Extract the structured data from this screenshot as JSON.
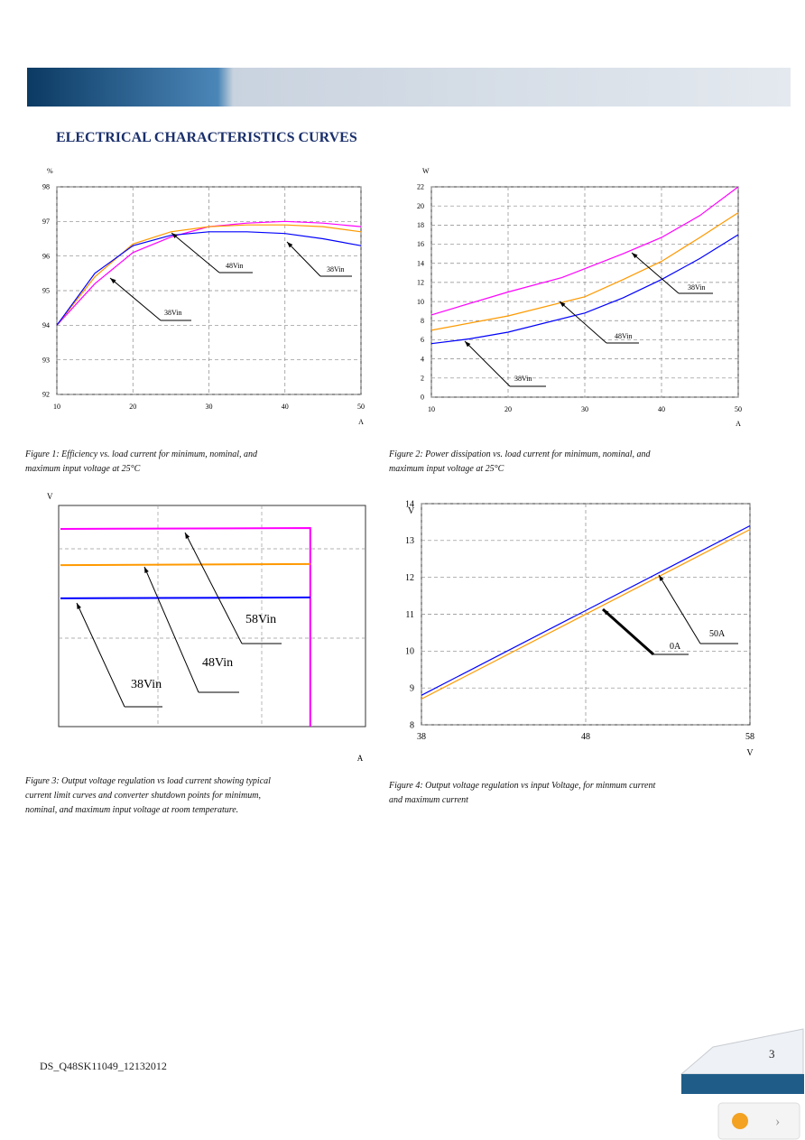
{
  "header": {
    "title": "ELECTRICAL CHARACTERISTICS CURVES"
  },
  "chart_data": [
    {
      "type": "line",
      "y_label": "%",
      "x_label": "A",
      "xlim": [
        10,
        50
      ],
      "ylim": [
        92,
        98
      ],
      "xticks": [
        10,
        20,
        30,
        40,
        50
      ],
      "yticks": [
        92,
        93,
        94,
        95,
        96,
        97,
        98
      ],
      "grid": true,
      "series": [
        {
          "color": "#ff00ff",
          "x": [
            10,
            15,
            20,
            25,
            30,
            35,
            40,
            45,
            50
          ],
          "values": [
            94.0,
            95.2,
            96.1,
            96.55,
            96.85,
            96.95,
            97.0,
            96.95,
            96.85
          ]
        },
        {
          "color": "#ff9900",
          "x": [
            10,
            15,
            20,
            25,
            30,
            35,
            40,
            45,
            50
          ],
          "values": [
            94.0,
            95.4,
            96.35,
            96.7,
            96.85,
            96.9,
            96.9,
            96.85,
            96.7
          ]
        },
        {
          "color": "#0000ff",
          "x": [
            10,
            15,
            20,
            25,
            30,
            35,
            40,
            45,
            50
          ],
          "values": [
            94.0,
            95.5,
            96.3,
            96.6,
            96.7,
            96.7,
            96.65,
            96.5,
            96.3
          ]
        }
      ],
      "annotations": [
        "48Vin",
        "38Vin",
        "38Vin"
      ]
    },
    {
      "type": "line",
      "y_label": "W",
      "x_label": "A",
      "xlim": [
        10,
        50
      ],
      "ylim": [
        0,
        22
      ],
      "xticks": [
        10,
        20,
        30,
        40,
        50
      ],
      "yticks": [
        0,
        2,
        4,
        6,
        8,
        10,
        12,
        14,
        16,
        18,
        20,
        22
      ],
      "grid": true,
      "series": [
        {
          "color": "#ff00ff",
          "x": [
            10,
            20,
            27,
            35,
            40,
            45,
            50
          ],
          "values": [
            8.6,
            11,
            12.5,
            15,
            16.7,
            19,
            22
          ]
        },
        {
          "color": "#ff9900",
          "x": [
            10,
            20,
            30,
            35,
            40,
            45,
            50
          ],
          "values": [
            7,
            8.5,
            10.5,
            12.3,
            14.2,
            16.7,
            19.3
          ]
        },
        {
          "color": "#0000ff",
          "x": [
            10,
            15,
            20,
            30,
            35,
            40,
            45,
            50
          ],
          "values": [
            5.6,
            6.1,
            6.8,
            8.8,
            10.4,
            12.3,
            14.5,
            17
          ]
        }
      ],
      "annotations": [
        "38Vin",
        "48Vin",
        "38Vin"
      ]
    },
    {
      "type": "line",
      "y_label": "V",
      "x_label": "A",
      "xlim": [
        0,
        100
      ],
      "ylim": [
        0,
        100
      ],
      "grid": true,
      "series": [
        {
          "color": "#ff00ff",
          "x": [
            0.6,
            82,
            82
          ],
          "values": [
            89.4,
            89.8,
            0
          ]
        },
        {
          "color": "#ff9900",
          "x": [
            0.6,
            82
          ],
          "values": [
            73,
            73.5
          ]
        },
        {
          "color": "#0000ff",
          "x": [
            0.6,
            82
          ],
          "values": [
            58,
            58.4
          ]
        }
      ],
      "annotations": [
        "58Vin",
        "48Vin",
        "38Vin"
      ]
    },
    {
      "type": "line",
      "y_label": "V",
      "x_label": "V",
      "xlim": [
        38,
        58
      ],
      "ylim": [
        8,
        14
      ],
      "xticks": [
        38,
        48,
        58
      ],
      "yticks": [
        8,
        9,
        10,
        11,
        12,
        13,
        14
      ],
      "grid": true,
      "series": [
        {
          "color": "#0000ff",
          "x": [
            38,
            58
          ],
          "values": [
            8.8,
            13.4
          ]
        },
        {
          "color": "#ff9900",
          "x": [
            38,
            58
          ],
          "values": [
            8.7,
            13.3
          ]
        }
      ],
      "annotations": [
        "0A",
        "50A"
      ]
    }
  ],
  "captions": [
    [
      "Figure 1: Efficiency vs. load current for minimum, nominal, and",
      "maximum input voltage at 25°C"
    ],
    [
      "Figure 2: Power dissipation vs. load current for minimum, nominal, and",
      "maximum input voltage at 25°C"
    ],
    [
      "Figure 3: Output voltage regulation vs load current showing typical",
      "current limit  curves and converter shutdown points for minimum,",
      "nominal, and maximum input voltage at room temperature."
    ],
    [
      "Figure 4: Output voltage regulation vs input Voltage, for minmum current",
      "and maximum current"
    ]
  ],
  "footer": {
    "doc_id": "DS_Q48SK11049_12132012",
    "page": "3"
  }
}
